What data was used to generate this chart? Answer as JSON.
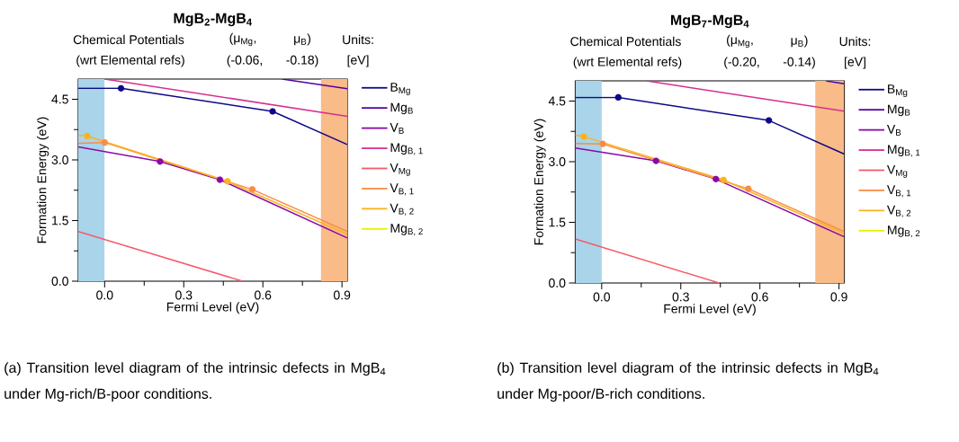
{
  "chart_data": [
    {
      "type": "line",
      "title": "MgB$_{2}$-MgB$_{4}$",
      "xlabel": "Fermi Level (eV)",
      "ylabel": "Formation Energy (eV)",
      "annotations": [
        "Chemical Potentials",
        "(wrt Elemental refs)",
        "(μ$_{Mg}$,",
        "μ$_{B}$)",
        "(-0.06,",
        "-0.18)",
        "Units:",
        "[eV]",
        "(a) Transition level diagram of the intrinsic defects in MgB$_{4}$ under Mg-rich/B-poor conditions."
      ],
      "xlim": [
        -0.1,
        0.92
      ],
      "ylim": [
        0,
        5.0
      ],
      "xticks": [
        {
          "value": 0,
          "label": "0.0"
        },
        {
          "value": 0.15,
          "label": null
        },
        {
          "value": 0.3,
          "label": "0.3"
        },
        {
          "value": 0.45,
          "label": null
        },
        {
          "value": 0.6,
          "label": "0.6"
        },
        {
          "value": 0.75,
          "label": null
        },
        {
          "value": 0.9,
          "label": "0.9"
        }
      ],
      "yticks": [
        {
          "value": 0,
          "label": "0.0"
        },
        {
          "value": 0.75,
          "label": null
        },
        {
          "value": 1.5,
          "label": "1.5"
        },
        {
          "value": 2.25,
          "label": null
        },
        {
          "value": 3.0,
          "label": "3.0"
        },
        {
          "value": 3.75,
          "label": null
        },
        {
          "value": 4.5,
          "label": "4.5"
        }
      ],
      "legend": "right",
      "bands": [
        {
          "axis": "x",
          "from": -0.1,
          "to": 0,
          "color": "#a9d4e9"
        },
        {
          "axis": "x",
          "from": 0.82,
          "to": 0.92,
          "color": "#f9bb88"
        }
      ],
      "series": [
        {
          "name": "B$_{Mg}$",
          "color": "#0d0887",
          "x": [
            -0.1,
            0.062,
            0.637,
            0.92
          ],
          "values": [
            4.77,
            4.77,
            4.2,
            3.38
          ]
        },
        {
          "name": "Mg$_{B}$",
          "color": "#5302a3",
          "x": [
            0.673,
            0.92
          ],
          "values": [
            5.0,
            4.76
          ]
        },
        {
          "name": "V$_{B}$",
          "color": "#8b0aa5",
          "x": [
            -0.1,
            0.21,
            0.437,
            0.92
          ],
          "values": [
            3.32,
            2.96,
            2.51,
            1.07
          ]
        },
        {
          "name": "Mg$_{B, 1}$",
          "color": "#d6308e",
          "x": [
            0.0,
            0.92
          ],
          "values": [
            5.0,
            4.08
          ]
        },
        {
          "name": "V$_{Mg}$",
          "color": "#f55a6a",
          "x": [
            -0.1,
            0.523
          ],
          "values": [
            1.23,
            0.0
          ]
        },
        {
          "name": "V$_{B, 1}$",
          "color": "#fa8c47",
          "x": [
            -0.1,
            0.0,
            0.56,
            0.92
          ],
          "values": [
            3.41,
            3.43,
            2.27,
            1.23
          ]
        },
        {
          "name": "V$_{B, 2}$",
          "color": "#fbb31d",
          "x": [
            -0.1,
            -0.066,
            0.466,
            0.92
          ],
          "values": [
            3.61,
            3.59,
            2.47,
            1.16
          ]
        },
        {
          "name": "Mg$_{B, 2}$",
          "color": "#e6ef00"
        },
        {
          "type": "scatter",
          "marker": "circle",
          "color": "#0d0887",
          "x": [
            0.062,
            0.637
          ],
          "values": [
            4.77,
            4.2
          ]
        },
        {
          "type": "scatter",
          "marker": "circle",
          "color": "#8b0aa5",
          "x": [
            0.21,
            0.437
          ],
          "values": [
            2.96,
            2.51
          ]
        },
        {
          "type": "scatter",
          "marker": "circle",
          "color": "#fa8c47",
          "x": [
            0.0,
            0.56
          ],
          "values": [
            3.43,
            2.27
          ]
        },
        {
          "type": "scatter",
          "marker": "circle",
          "color": "#fbb31d",
          "x": [
            -0.066,
            0.466
          ],
          "values": [
            3.59,
            2.47
          ]
        }
      ]
    },
    {
      "type": "line",
      "title": "MgB$_{7}$-MgB$_{4}$",
      "xlabel": "Fermi Level (eV)",
      "ylabel": "Formation Energy (eV)",
      "annotations": [
        "Chemical Potentials",
        "(wrt Elemental refs)",
        "(μ$_{Mg}$,",
        "μ$_{B}$)",
        "(-0.20,",
        "-0.14)",
        "Units:",
        "[eV]",
        "(b) Transition level diagram of the intrinsic defects in MgB$_{4}$ under Mg-poor/B-rich conditions."
      ],
      "xlim": [
        -0.1,
        0.92
      ],
      "ylim": [
        0,
        5.0
      ],
      "xticks": [
        {
          "value": 0,
          "label": "0.0"
        },
        {
          "value": 0.15,
          "label": null
        },
        {
          "value": 0.3,
          "label": "0.3"
        },
        {
          "value": 0.45,
          "label": null
        },
        {
          "value": 0.6,
          "label": "0.6"
        },
        {
          "value": 0.75,
          "label": null
        },
        {
          "value": 0.9,
          "label": "0.9"
        }
      ],
      "yticks": [
        {
          "value": 0,
          "label": "0.0"
        },
        {
          "value": 0.75,
          "label": null
        },
        {
          "value": 1.5,
          "label": "1.5"
        },
        {
          "value": 2.25,
          "label": null
        },
        {
          "value": 3.0,
          "label": "3.0"
        },
        {
          "value": 3.75,
          "label": null
        },
        {
          "value": 4.5,
          "label": "4.5"
        }
      ],
      "legend": "right",
      "bands": [
        {
          "axis": "x",
          "from": -0.1,
          "to": 0,
          "color": "#a9d4e9"
        },
        {
          "axis": "x",
          "from": 0.81,
          "to": 0.92,
          "color": "#f9bb88"
        }
      ],
      "series": [
        {
          "name": "B$_{Mg}$",
          "color": "#0d0887",
          "x": [
            -0.1,
            0.063,
            0.634,
            0.92
          ],
          "values": [
            4.59,
            4.59,
            4.02,
            3.19
          ]
        },
        {
          "name": "Mg$_{B}$",
          "color": "#5302a3",
          "x": [
            0.85,
            0.92
          ],
          "values": [
            5.0,
            4.93
          ]
        },
        {
          "name": "V$_{B}$",
          "color": "#8b0aa5",
          "x": [
            -0.1,
            0.206,
            0.433,
            0.92
          ],
          "values": [
            3.34,
            3.02,
            2.57,
            1.14
          ]
        },
        {
          "name": "Mg$_{B, 1}$",
          "color": "#d6308e",
          "x": [
            0.17,
            0.92
          ],
          "values": [
            5.0,
            4.25
          ]
        },
        {
          "name": "V$_{Mg}$",
          "color": "#f55a6a",
          "x": [
            -0.1,
            0.445
          ],
          "values": [
            1.09,
            0.0
          ]
        },
        {
          "name": "V$_{B, 1}$",
          "color": "#fa8c47",
          "x": [
            -0.1,
            0.004,
            0.556,
            0.92
          ],
          "values": [
            3.45,
            3.44,
            2.33,
            1.27
          ]
        },
        {
          "name": "V$_{B, 2}$",
          "color": "#fbb31d",
          "x": [
            -0.1,
            -0.067,
            0.462,
            0.92
          ],
          "values": [
            3.66,
            3.62,
            2.55,
            1.22
          ]
        },
        {
          "name": "Mg$_{B, 2}$",
          "color": "#e6ef00"
        },
        {
          "type": "scatter",
          "marker": "circle",
          "color": "#0d0887",
          "x": [
            0.063,
            0.634
          ],
          "values": [
            4.59,
            4.02
          ]
        },
        {
          "type": "scatter",
          "marker": "circle",
          "color": "#8b0aa5",
          "x": [
            0.206,
            0.433
          ],
          "values": [
            3.02,
            2.57
          ]
        },
        {
          "type": "scatter",
          "marker": "circle",
          "color": "#fa8c47",
          "x": [
            0.004,
            0.556
          ],
          "values": [
            3.44,
            2.33
          ]
        },
        {
          "type": "scatter",
          "marker": "circle",
          "color": "#fbb31d",
          "x": [
            -0.067,
            0.462
          ],
          "values": [
            3.62,
            2.55
          ]
        }
      ]
    }
  ]
}
